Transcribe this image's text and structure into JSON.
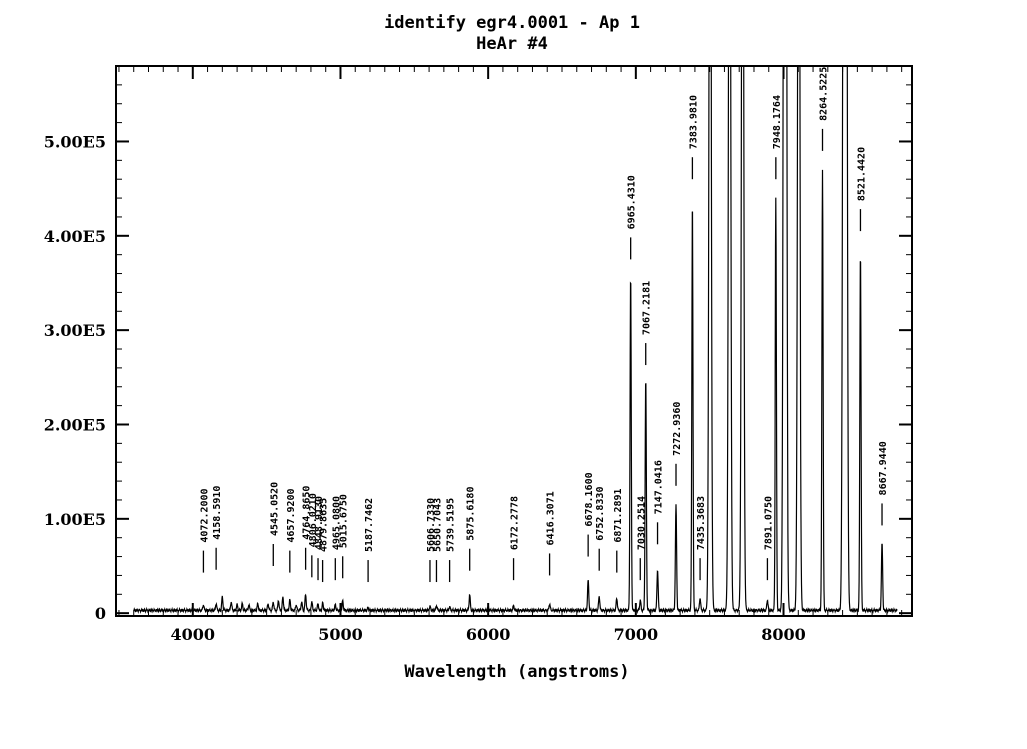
{
  "chart_data": {
    "type": "line",
    "title": "identify egr4.0001 - Ap 1",
    "subtitle": "HeAr #4",
    "xlabel": "Wavelength (angstroms)",
    "ylabel": "",
    "xlim": [
      3480,
      8870
    ],
    "ylim": [
      -3000,
      580000
    ],
    "x_ticks": [
      4000,
      5000,
      6000,
      7000,
      8000
    ],
    "x_tick_labels": [
      "4000",
      "5000",
      "6000",
      "7000",
      "8000"
    ],
    "y_ticks": [
      0,
      100000,
      200000,
      300000,
      400000,
      500000
    ],
    "y_tick_labels": [
      "0",
      "1.00E5",
      "2.00E5",
      "3.00E5",
      "4.00E5",
      "5.00E5"
    ],
    "baseline": 3000,
    "spectrum_peaks": [
      {
        "x": 4072,
        "y": 9000
      },
      {
        "x": 4158,
        "y": 10000
      },
      {
        "x": 4200,
        "y": 17000
      },
      {
        "x": 4260,
        "y": 12000
      },
      {
        "x": 4300,
        "y": 9000
      },
      {
        "x": 4335,
        "y": 10000
      },
      {
        "x": 4380,
        "y": 9000
      },
      {
        "x": 4440,
        "y": 10000
      },
      {
        "x": 4510,
        "y": 10000
      },
      {
        "x": 4545,
        "y": 12000
      },
      {
        "x": 4580,
        "y": 14000
      },
      {
        "x": 4610,
        "y": 17000
      },
      {
        "x": 4657,
        "y": 14000
      },
      {
        "x": 4700,
        "y": 9000
      },
      {
        "x": 4737,
        "y": 12000
      },
      {
        "x": 4764,
        "y": 20000
      },
      {
        "x": 4806,
        "y": 12000
      },
      {
        "x": 4848,
        "y": 10000
      },
      {
        "x": 4880,
        "y": 11000
      },
      {
        "x": 4965,
        "y": 9000
      },
      {
        "x": 5015,
        "y": 13000
      },
      {
        "x": 5187,
        "y": 6000
      },
      {
        "x": 5606,
        "y": 7000
      },
      {
        "x": 5650,
        "y": 8000
      },
      {
        "x": 5739,
        "y": 7000
      },
      {
        "x": 5875,
        "y": 20000
      },
      {
        "x": 6000,
        "y": 7000
      },
      {
        "x": 6172,
        "y": 8000
      },
      {
        "x": 6416,
        "y": 10000
      },
      {
        "x": 6677,
        "y": 35000
      },
      {
        "x": 6752,
        "y": 18000
      },
      {
        "x": 6871,
        "y": 16000
      },
      {
        "x": 6965,
        "y": 360000
      },
      {
        "x": 7030,
        "y": 14000
      },
      {
        "x": 7067,
        "y": 250000
      },
      {
        "x": 7147,
        "y": 46000
      },
      {
        "x": 7272,
        "y": 115000
      },
      {
        "x": 7383,
        "y": 440000
      },
      {
        "x": 7435,
        "y": 16000
      },
      {
        "x": 7503,
        "y": 1100000
      },
      {
        "x": 7635,
        "y": 1100000
      },
      {
        "x": 7723,
        "y": 1100000
      },
      {
        "x": 7891,
        "y": 14000
      },
      {
        "x": 7948,
        "y": 440000
      },
      {
        "x": 8006,
        "y": 1100000
      },
      {
        "x": 8014,
        "y": 1100000
      },
      {
        "x": 8103,
        "y": 1100000
      },
      {
        "x": 8264,
        "y": 470000
      },
      {
        "x": 8408,
        "y": 1100000
      },
      {
        "x": 8424,
        "y": 1100000
      },
      {
        "x": 8521,
        "y": 385000
      },
      {
        "x": 8667,
        "y": 75000
      }
    ],
    "identified_lines": [
      {
        "x": 4072,
        "label": "4072.2000",
        "mark_y": 43000
      },
      {
        "x": 4158,
        "label": "4158.5910",
        "mark_y": 46000
      },
      {
        "x": 4545,
        "label": "4545.0520",
        "mark_y": 50000
      },
      {
        "x": 4657,
        "label": "4657.9200",
        "mark_y": 43000
      },
      {
        "x": 4764,
        "label": "4764.8650",
        "mark_y": 46000
      },
      {
        "x": 4806,
        "label": "4806.0210",
        "mark_y": 38000
      },
      {
        "x": 4848,
        "label": "4848.9130",
        "mark_y": 35000
      },
      {
        "x": 4879,
        "label": "4879.8635",
        "mark_y": 33000
      },
      {
        "x": 4965,
        "label": "4965.0800",
        "mark_y": 35000
      },
      {
        "x": 5015,
        "label": "5015.6750",
        "mark_y": 37000
      },
      {
        "x": 5187,
        "label": "5187.7462",
        "mark_y": 33000
      },
      {
        "x": 5606,
        "label": "5606.7330",
        "mark_y": 33000
      },
      {
        "x": 5650,
        "label": "5650.7043",
        "mark_y": 33000
      },
      {
        "x": 5739,
        "label": "5739.5195",
        "mark_y": 33000
      },
      {
        "x": 5875,
        "label": "5875.6180",
        "mark_y": 45000
      },
      {
        "x": 6172,
        "label": "6172.2778",
        "mark_y": 35000
      },
      {
        "x": 6416,
        "label": "6416.3071",
        "mark_y": 40000
      },
      {
        "x": 6677,
        "label": "6678.1600",
        "mark_y": 60000
      },
      {
        "x": 6752,
        "label": "6752.8330",
        "mark_y": 45000
      },
      {
        "x": 6871,
        "label": "6871.2891",
        "mark_y": 43000
      },
      {
        "x": 6965,
        "label": "6965.4310",
        "mark_y": 375000
      },
      {
        "x": 7030,
        "label": "7030.2514",
        "mark_y": 35000
      },
      {
        "x": 7067,
        "label": "7067.2181",
        "mark_y": 263000
      },
      {
        "x": 7147,
        "label": "7147.0416",
        "mark_y": 73000
      },
      {
        "x": 7272,
        "label": "7272.9360",
        "mark_y": 135000
      },
      {
        "x": 7383,
        "label": "7383.9810",
        "mark_y": 460000
      },
      {
        "x": 7435,
        "label": "7435.3683",
        "mark_y": 35000
      },
      {
        "x": 7891,
        "label": "7891.0750",
        "mark_y": 35000
      },
      {
        "x": 7948,
        "label": "7948.1764",
        "mark_y": 460000
      },
      {
        "x": 8264,
        "label": "8264.5225",
        "mark_y": 490000
      },
      {
        "x": 8521,
        "label": "8521.4420",
        "mark_y": 405000
      },
      {
        "x": 8667,
        "label": "8667.9440",
        "mark_y": 93000
      }
    ]
  }
}
